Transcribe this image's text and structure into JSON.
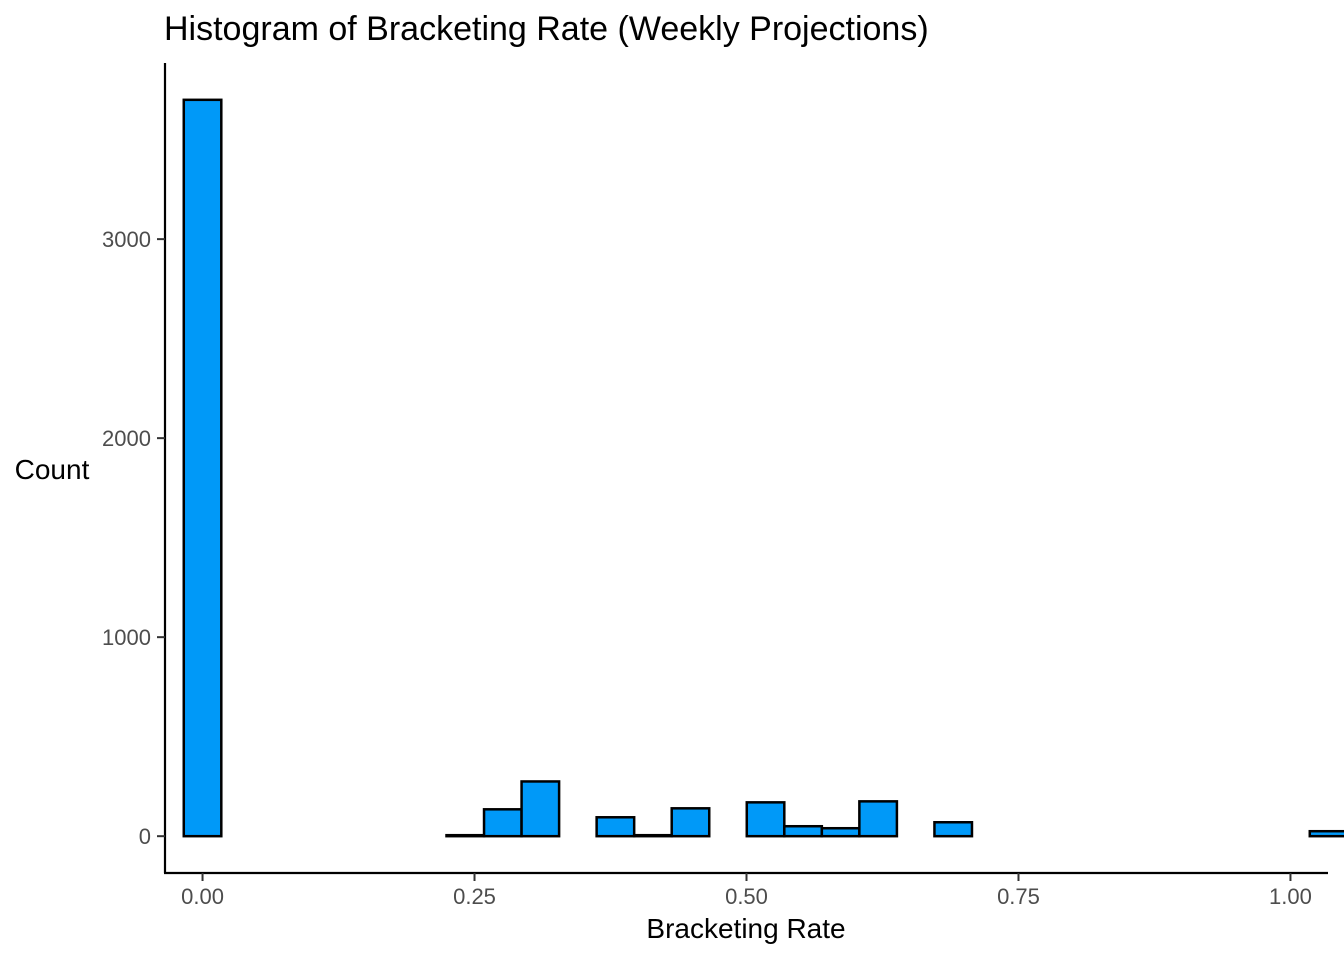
{
  "chart_data": {
    "type": "bar",
    "title": "Histogram of Bracketing Rate (Weekly Projections)",
    "xlabel": "Bracketing Rate",
    "ylabel": "Count",
    "xlim": [
      -0.0345,
      1.0345
    ],
    "ylim": [
      -185,
      3885
    ],
    "x_ticks": [
      0,
      0.25,
      0.5,
      0.75,
      1
    ],
    "x_tick_labels": [
      "0.00",
      "0.25",
      "0.50",
      "0.75",
      "1.00"
    ],
    "y_ticks": [
      0,
      1000,
      2000,
      3000
    ],
    "y_tick_labels": [
      "0",
      "1000",
      "2000",
      "3000"
    ],
    "bin_width": 0.0345,
    "bin_start": -0.01725,
    "counts": [
      3700,
      0,
      0,
      0,
      0,
      0,
      0,
      5,
      135,
      275,
      0,
      95,
      5,
      140,
      0,
      170,
      50,
      40,
      175,
      0,
      70,
      0,
      0,
      0,
      0,
      0,
      0,
      0,
      0,
      0,
      25
    ],
    "bar_color": "#0099f8",
    "bar_edge_color": "#000000",
    "grid": false
  }
}
